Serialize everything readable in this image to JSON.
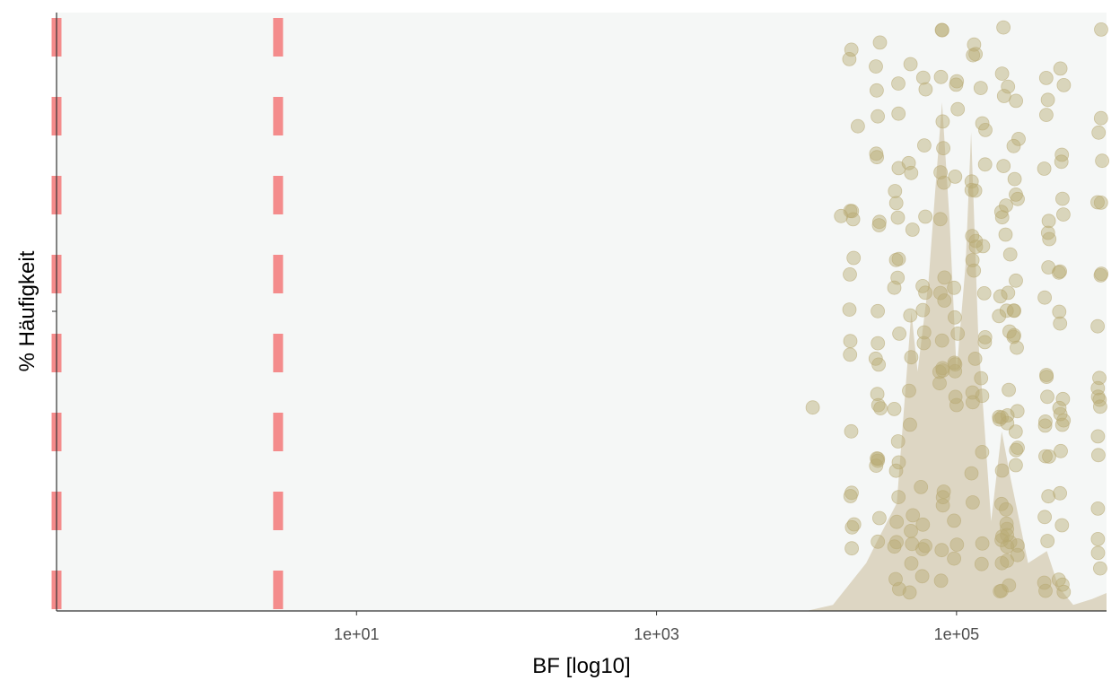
{
  "chart_data": {
    "type": "scatter",
    "title": "",
    "xlabel": "BF [log10]",
    "ylabel": "% Häufigkeit",
    "x_scale": "log10",
    "xlim": [
      0.1,
      1000000
    ],
    "x_ticks": [
      10,
      1000,
      100000
    ],
    "x_tick_labels": [
      "1e+01",
      "1e+03",
      "1e+05"
    ],
    "y_ticks_labeled": false,
    "grid": false,
    "legend": "none",
    "reference_lines": [
      {
        "x": 0.1,
        "style": "dashed"
      },
      {
        "x": 3,
        "style": "dashed"
      }
    ],
    "density": [
      {
        "x": 10000,
        "y": 0.0
      },
      {
        "x": 15000,
        "y": 0.01
      },
      {
        "x": 25000,
        "y": 0.08
      },
      {
        "x": 30000,
        "y": 0.12
      },
      {
        "x": 40000,
        "y": 0.18
      },
      {
        "x": 50000,
        "y": 0.5
      },
      {
        "x": 55000,
        "y": 0.4
      },
      {
        "x": 65000,
        "y": 0.55
      },
      {
        "x": 72000,
        "y": 0.7
      },
      {
        "x": 80000,
        "y": 0.85
      },
      {
        "x": 90000,
        "y": 0.65
      },
      {
        "x": 100000,
        "y": 0.4
      },
      {
        "x": 115000,
        "y": 0.58
      },
      {
        "x": 125000,
        "y": 0.8
      },
      {
        "x": 140000,
        "y": 0.45
      },
      {
        "x": 170000,
        "y": 0.15
      },
      {
        "x": 200000,
        "y": 0.3
      },
      {
        "x": 230000,
        "y": 0.22
      },
      {
        "x": 300000,
        "y": 0.08
      },
      {
        "x": 400000,
        "y": 0.1
      },
      {
        "x": 480000,
        "y": 0.04
      },
      {
        "x": 600000,
        "y": 0.01
      },
      {
        "x": 800000,
        "y": 0.02
      },
      {
        "x": 1000000,
        "y": 0.03
      }
    ],
    "x_clusters": [
      20000,
      30000,
      40000,
      50000,
      60000,
      80000,
      100000,
      130000,
      150000,
      200000,
      220000,
      250000,
      400000,
      500000,
      900000
    ],
    "isolated_points": [
      {
        "x": 11000,
        "y": 0.34
      },
      {
        "x": 17000,
        "y": 0.66
      },
      {
        "x": 22000,
        "y": 0.81
      }
    ],
    "colors": {
      "panel_background": "#f5f7f6",
      "points": "#b9aa74",
      "density_fill": "#ddd6c3",
      "reference_line": "#f48c8c",
      "axis": "#333333"
    }
  }
}
